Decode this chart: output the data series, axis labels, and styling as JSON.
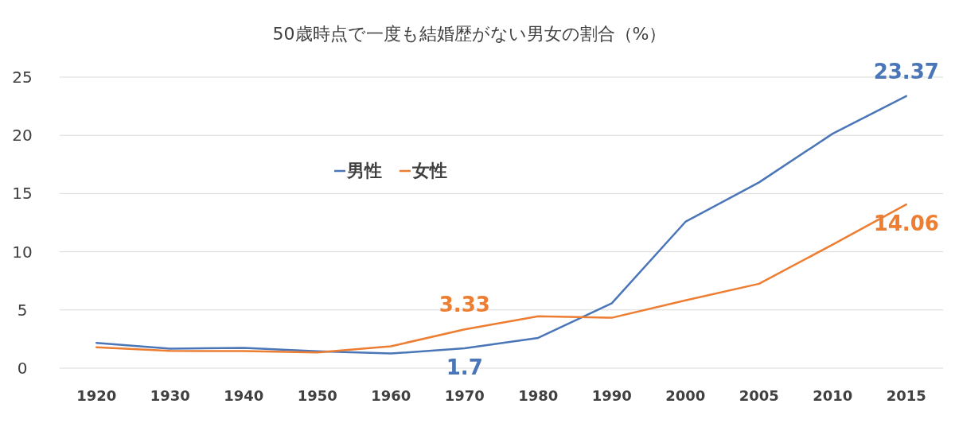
{
  "chart_data": {
    "type": "line",
    "title": "50歳時点で一度も結婚歴がない男女の割合（%）",
    "categories": [
      "1920",
      "1930",
      "1940",
      "1950",
      "1960",
      "1970",
      "1980",
      "1990",
      "2000",
      "2005",
      "2010",
      "2015"
    ],
    "series": [
      {
        "name": "男性",
        "color": "#4a76b8",
        "values": [
          2.17,
          1.68,
          1.75,
          1.45,
          1.26,
          1.7,
          2.6,
          5.57,
          12.57,
          15.96,
          20.14,
          23.37
        ],
        "value_labels": [
          null,
          null,
          null,
          null,
          null,
          "1.7",
          null,
          null,
          null,
          null,
          null,
          "23.37"
        ]
      },
      {
        "name": "女性",
        "color": "#ed7d31",
        "values": [
          1.8,
          1.48,
          1.47,
          1.35,
          1.88,
          3.33,
          4.45,
          4.33,
          5.82,
          7.25,
          10.61,
          14.06
        ],
        "value_labels": [
          null,
          null,
          null,
          null,
          null,
          "3.33",
          null,
          null,
          null,
          null,
          null,
          "14.06"
        ]
      }
    ],
    "ylim": [
      0,
      25
    ],
    "yticks": [
      0,
      5,
      10,
      15,
      20,
      25
    ],
    "grid": "y",
    "legend": "top left",
    "marker": "none",
    "line_style": "solid"
  }
}
